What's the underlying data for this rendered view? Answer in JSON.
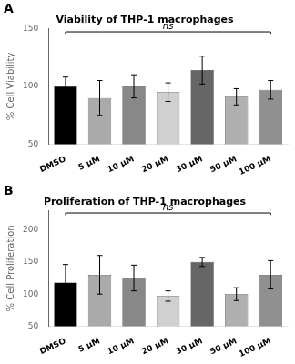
{
  "chart_data": [
    {
      "type": "bar",
      "title": "Viability of THP-1 macrophages",
      "y_label": "% Cell Viability",
      "categories": [
        "DMSO",
        "5 μM",
        "10 μM",
        "20 μM",
        "30 μM",
        "50 μM",
        "100 μM"
      ],
      "values": [
        100,
        90,
        100,
        95,
        114,
        91,
        97
      ],
      "errors": [
        8,
        15,
        10,
        8,
        12,
        7,
        8
      ],
      "colors": [
        "#000000",
        "#aaaaaa",
        "#888888",
        "#d0d0d0",
        "#666666",
        "#b0b0b0",
        "#909090"
      ],
      "ylim": [
        50,
        150
      ],
      "yticks": [
        50,
        100,
        150
      ],
      "grid": false,
      "annotations": [
        {
          "text": "A"
        },
        {
          "text": "ns",
          "x": [
            "DMSO",
            "100 μM"
          ],
          "y": 147
        }
      ]
    },
    {
      "type": "bar",
      "title": "Proliferation of THP-1 macrophages",
      "y_label": "% Cell Proliferation",
      "categories": [
        "DMSO",
        "5 μM",
        "10 μM",
        "20 μM",
        "30 μM",
        "50 μM",
        "100 μM"
      ],
      "values": [
        118,
        130,
        125,
        97,
        150,
        100,
        130
      ],
      "errors": [
        28,
        30,
        20,
        8,
        7,
        10,
        22
      ],
      "colors": [
        "#000000",
        "#aaaaaa",
        "#888888",
        "#d0d0d0",
        "#666666",
        "#b0b0b0",
        "#909090"
      ],
      "ylim": [
        50,
        230
      ],
      "yticks": [
        50,
        100,
        150,
        200
      ],
      "grid": false,
      "annotations": [
        {
          "text": "B"
        },
        {
          "text": "ns",
          "x": [
            "DMSO",
            "100 μM"
          ],
          "y": 226
        }
      ]
    }
  ]
}
